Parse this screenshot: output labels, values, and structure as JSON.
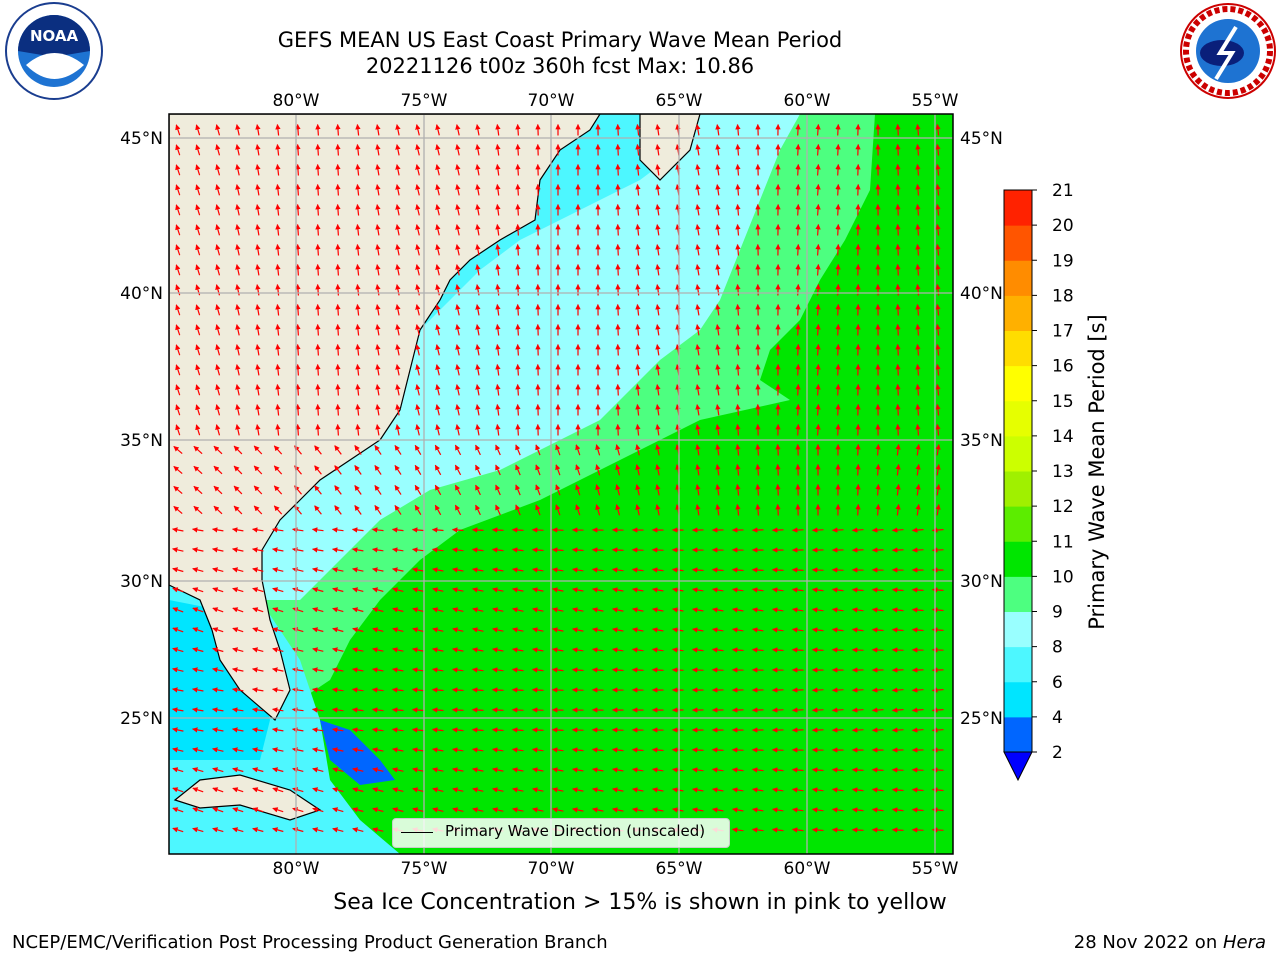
{
  "title": {
    "line1": "GEFS MEAN US East Coast Primary Wave Mean Period",
    "line2": "20221126 t00z 360h fcst   Max: 10.86"
  },
  "logos": {
    "noaa": "NOAA",
    "nws": "NATIONAL WEATHER SERVICE"
  },
  "map": {
    "lon_ticks_top": [
      "80°W",
      "75°W",
      "70°W",
      "65°W",
      "60°W",
      "55°W"
    ],
    "lon_ticks_bottom": [
      "80°W",
      "75°W",
      "70°W",
      "65°W",
      "60°W",
      "55°W"
    ],
    "lat_ticks_left": [
      "45°N",
      "40°N",
      "35°N",
      "30°N",
      "25°N"
    ],
    "lat_ticks_right": [
      "45°N",
      "40°N",
      "35°N",
      "30°N",
      "25°N"
    ],
    "lon_range": [
      -85,
      -54.5
    ],
    "lat_range": [
      20.5,
      46
    ],
    "land_color": "#efecdc",
    "arrow_color": "#ff0000",
    "grid_color": "#b0b0b0",
    "legend_label": "Primary Wave Direction (unscaled)"
  },
  "colorbar": {
    "label": "Primary Wave Mean Period [s]",
    "tick_labels": [
      "2",
      "4",
      "6",
      "8",
      "9",
      "10",
      "11",
      "12",
      "13",
      "14",
      "15",
      "16",
      "17",
      "18",
      "19",
      "20",
      "21"
    ],
    "colors": [
      "#0066ff",
      "#00e5ff",
      "#4df7ff",
      "#99ffff",
      "#4dff80",
      "#00e600",
      "#5ced00",
      "#a0f000",
      "#ccff00",
      "#e6ff00",
      "#ffff00",
      "#ffdd00",
      "#ffb000",
      "#ff8c00",
      "#ff5500",
      "#ff2200",
      "#ff0000"
    ],
    "extend_color": "#0000ff"
  },
  "ice_note": "Sea Ice Concentration > 15% is shown in pink to yellow",
  "footer": {
    "left": "NCEP/EMC/Verification Post Processing Product Generation Branch",
    "right_prefix": "28 Nov 2022 on ",
    "right_machine": "Hera"
  }
}
